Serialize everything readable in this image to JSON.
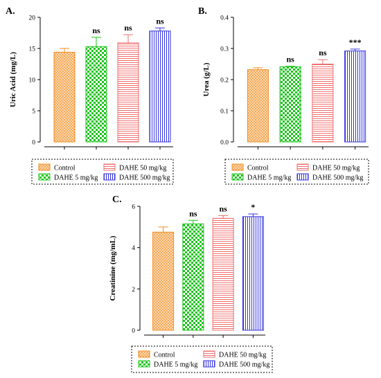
{
  "colors": {
    "Control": "#f28a1e",
    "DAHE 5 mg/kg": "#1ec41e",
    "DAHE 50 mg/kg": "#f06e6e",
    "DAHE 500 mg/kg": "#3232e0",
    "axis": "#000000"
  },
  "legend": {
    "placement": "below",
    "border": "dashed",
    "entries": [
      "Control",
      "DAHE 5 mg/kg",
      "DAHE 50 mg/kg",
      "DAHE 500 mg/kg"
    ]
  },
  "chart_data": [
    {
      "type": "bar",
      "panel": "A.",
      "ylabel": "Uric Acid (mg/L)",
      "ylim": [
        0,
        20
      ],
      "yticks": [
        "0",
        "5",
        "10",
        "15",
        "20"
      ],
      "categories": [
        "Control",
        "DAHE 5 mg/kg",
        "DAHE 50 mg/kg",
        "DAHE 500 mg/kg"
      ],
      "values": [
        14.4,
        15.3,
        15.9,
        17.8
      ],
      "errors": [
        0.6,
        1.5,
        1.3,
        0.5
      ],
      "annotations": [
        "",
        "ns",
        "ns",
        "ns"
      ]
    },
    {
      "type": "bar",
      "panel": "B.",
      "ylabel": "Urea (g/L)",
      "ylim": [
        0,
        0.4
      ],
      "yticks": [
        "0.0",
        "0.1",
        "0.2",
        "0.3",
        "0.4"
      ],
      "categories": [
        "Control",
        "DAHE 5 mg/kg",
        "DAHE 50 mg/kg",
        "DAHE 500 mg/kg"
      ],
      "values": [
        0.232,
        0.241,
        0.25,
        0.292
      ],
      "errors": [
        0.006,
        0.002,
        0.014,
        0.006
      ],
      "annotations": [
        "",
        "ns",
        "ns",
        "***"
      ]
    },
    {
      "type": "bar",
      "panel": "C.",
      "ylabel": "Creatinine (mg/mL)",
      "ylim": [
        0,
        6
      ],
      "yticks": [
        "0",
        "2",
        "4",
        "6"
      ],
      "categories": [
        "Control",
        "DAHE 5 mg/kg",
        "DAHE 50 mg/kg",
        "DAHE 500 mg/kg"
      ],
      "values": [
        4.75,
        5.15,
        5.42,
        5.5
      ],
      "errors": [
        0.25,
        0.17,
        0.13,
        0.13
      ],
      "annotations": [
        "",
        "ns",
        "ns",
        "*"
      ]
    }
  ]
}
